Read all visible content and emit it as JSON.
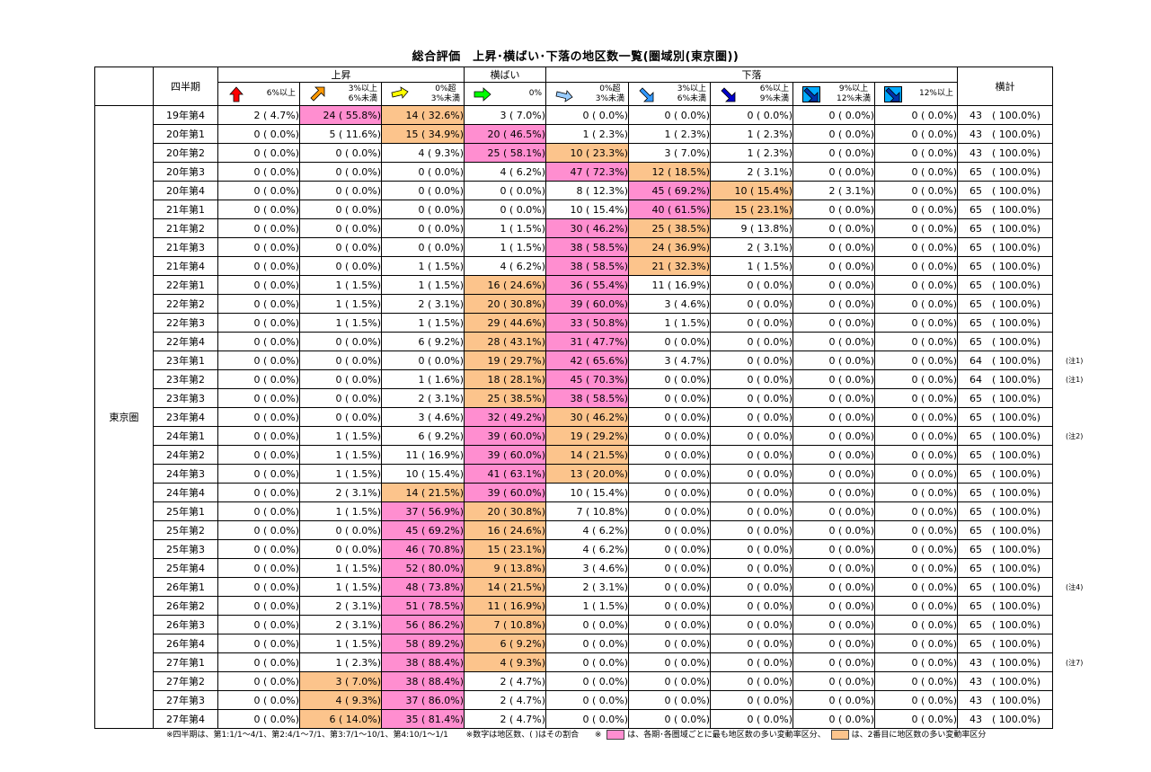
{
  "title": "総合評価　上昇･横ばい･下落の地区数一覧(圏域別(東京圏))",
  "header": {
    "quarter": "四半期",
    "up": "上昇",
    "flat": "横ばい",
    "down": "下落",
    "total": "横計",
    "cols": [
      {
        "label": "6%以上",
        "icon": "arrow-up-red-icon",
        "color": "#ff0000"
      },
      {
        "label": "3%以上\n6%未満",
        "icon": "arrow-up-right-orange-icon",
        "color": "#ff9900"
      },
      {
        "label": "0%超\n3%未満",
        "icon": "arrow-right-up-yellow-icon",
        "color": "#ffff00"
      },
      {
        "label": "0%",
        "icon": "arrow-right-green-icon",
        "color": "#00ff00"
      },
      {
        "label": "0%超\n3%未満",
        "icon": "arrow-right-down-lightblue-icon",
        "color": "#99ccff"
      },
      {
        "label": "3%以上\n6%未満",
        "icon": "arrow-down-right-blue-icon",
        "color": "#3399ff"
      },
      {
        "label": "6%以上\n9%未満",
        "icon": "arrow-down-right-darkblue-icon",
        "color": "#0000cc"
      },
      {
        "label": "9%以上\n12%未満",
        "icon": "arrow-down-right-boxed-icon",
        "color": "#0066ff"
      },
      {
        "label": "12%以上",
        "icon": "arrow-down-right-boxed-dark-icon",
        "color": "#0044cc"
      }
    ]
  },
  "region": "東京圏",
  "colors": {
    "most": "#ff8ed0",
    "second": "#fcc48c"
  },
  "rows": [
    {
      "q": "19年第4",
      "cells": [
        "2 ( 4.7%)",
        "24 ( 55.8%)",
        "14 ( 32.6%)",
        "3 ( 7.0%)",
        "0 ( 0.0%)",
        "0 ( 0.0%)",
        "0 ( 0.0%)",
        "0 ( 0.0%)",
        "0 ( 0.0%)"
      ],
      "hl": [
        null,
        "p",
        "o",
        null,
        null,
        null,
        null,
        null,
        null
      ],
      "total": "43　( 100.0%)",
      "note": ""
    },
    {
      "q": "20年第1",
      "cells": [
        "0 ( 0.0%)",
        "5 ( 11.6%)",
        "15 ( 34.9%)",
        "20 ( 46.5%)",
        "1 ( 2.3%)",
        "1 ( 2.3%)",
        "1 ( 2.3%)",
        "0 ( 0.0%)",
        "0 ( 0.0%)"
      ],
      "hl": [
        null,
        null,
        "o",
        "p",
        null,
        null,
        null,
        null,
        null
      ],
      "total": "43　( 100.0%)",
      "note": ""
    },
    {
      "q": "20年第2",
      "cells": [
        "0 ( 0.0%)",
        "0 ( 0.0%)",
        "4 ( 9.3%)",
        "25 ( 58.1%)",
        "10 ( 23.3%)",
        "3 ( 7.0%)",
        "1 ( 2.3%)",
        "0 ( 0.0%)",
        "0 ( 0.0%)"
      ],
      "hl": [
        null,
        null,
        null,
        "p",
        "o",
        null,
        null,
        null,
        null
      ],
      "total": "43　( 100.0%)",
      "note": ""
    },
    {
      "q": "20年第3",
      "cells": [
        "0 ( 0.0%)",
        "0 ( 0.0%)",
        "0 ( 0.0%)",
        "4 ( 6.2%)",
        "47 ( 72.3%)",
        "12 ( 18.5%)",
        "2 ( 3.1%)",
        "0 ( 0.0%)",
        "0 ( 0.0%)"
      ],
      "hl": [
        null,
        null,
        null,
        null,
        "p",
        "o",
        null,
        null,
        null
      ],
      "total": "65　( 100.0%)",
      "note": ""
    },
    {
      "q": "20年第4",
      "cells": [
        "0 ( 0.0%)",
        "0 ( 0.0%)",
        "0 ( 0.0%)",
        "0 ( 0.0%)",
        "8 ( 12.3%)",
        "45 ( 69.2%)",
        "10 ( 15.4%)",
        "2 ( 3.1%)",
        "0 ( 0.0%)"
      ],
      "hl": [
        null,
        null,
        null,
        null,
        null,
        "p",
        "o",
        null,
        null
      ],
      "total": "65　( 100.0%)",
      "note": ""
    },
    {
      "q": "21年第1",
      "cells": [
        "0 ( 0.0%)",
        "0 ( 0.0%)",
        "0 ( 0.0%)",
        "0 ( 0.0%)",
        "10 ( 15.4%)",
        "40 ( 61.5%)",
        "15 ( 23.1%)",
        "0 ( 0.0%)",
        "0 ( 0.0%)"
      ],
      "hl": [
        null,
        null,
        null,
        null,
        null,
        "p",
        "o",
        null,
        null
      ],
      "total": "65　( 100.0%)",
      "note": ""
    },
    {
      "q": "21年第2",
      "cells": [
        "0 ( 0.0%)",
        "0 ( 0.0%)",
        "0 ( 0.0%)",
        "1 ( 1.5%)",
        "30 ( 46.2%)",
        "25 ( 38.5%)",
        "9 ( 13.8%)",
        "0 ( 0.0%)",
        "0 ( 0.0%)"
      ],
      "hl": [
        null,
        null,
        null,
        null,
        "p",
        "o",
        null,
        null,
        null
      ],
      "total": "65　( 100.0%)",
      "note": ""
    },
    {
      "q": "21年第3",
      "cells": [
        "0 ( 0.0%)",
        "0 ( 0.0%)",
        "0 ( 0.0%)",
        "1 ( 1.5%)",
        "38 ( 58.5%)",
        "24 ( 36.9%)",
        "2 ( 3.1%)",
        "0 ( 0.0%)",
        "0 ( 0.0%)"
      ],
      "hl": [
        null,
        null,
        null,
        null,
        "p",
        "o",
        null,
        null,
        null
      ],
      "total": "65　( 100.0%)",
      "note": ""
    },
    {
      "q": "21年第4",
      "cells": [
        "0 ( 0.0%)",
        "0 ( 0.0%)",
        "1 ( 1.5%)",
        "4 ( 6.2%)",
        "38 ( 58.5%)",
        "21 ( 32.3%)",
        "1 ( 1.5%)",
        "0 ( 0.0%)",
        "0 ( 0.0%)"
      ],
      "hl": [
        null,
        null,
        null,
        null,
        "p",
        "o",
        null,
        null,
        null
      ],
      "total": "65　( 100.0%)",
      "note": ""
    },
    {
      "q": "22年第1",
      "cells": [
        "0 ( 0.0%)",
        "1 ( 1.5%)",
        "1 ( 1.5%)",
        "16 ( 24.6%)",
        "36 ( 55.4%)",
        "11 ( 16.9%)",
        "0 ( 0.0%)",
        "0 ( 0.0%)",
        "0 ( 0.0%)"
      ],
      "hl": [
        null,
        null,
        null,
        "o",
        "p",
        null,
        null,
        null,
        null
      ],
      "total": "65　( 100.0%)",
      "note": ""
    },
    {
      "q": "22年第2",
      "cells": [
        "0 ( 0.0%)",
        "1 ( 1.5%)",
        "2 ( 3.1%)",
        "20 ( 30.8%)",
        "39 ( 60.0%)",
        "3 ( 4.6%)",
        "0 ( 0.0%)",
        "0 ( 0.0%)",
        "0 ( 0.0%)"
      ],
      "hl": [
        null,
        null,
        null,
        "o",
        "p",
        null,
        null,
        null,
        null
      ],
      "total": "65　( 100.0%)",
      "note": ""
    },
    {
      "q": "22年第3",
      "cells": [
        "0 ( 0.0%)",
        "1 ( 1.5%)",
        "1 ( 1.5%)",
        "29 ( 44.6%)",
        "33 ( 50.8%)",
        "1 ( 1.5%)",
        "0 ( 0.0%)",
        "0 ( 0.0%)",
        "0 ( 0.0%)"
      ],
      "hl": [
        null,
        null,
        null,
        "o",
        "p",
        null,
        null,
        null,
        null
      ],
      "total": "65　( 100.0%)",
      "note": ""
    },
    {
      "q": "22年第4",
      "cells": [
        "0 ( 0.0%)",
        "0 ( 0.0%)",
        "6 ( 9.2%)",
        "28 ( 43.1%)",
        "31 ( 47.7%)",
        "0 ( 0.0%)",
        "0 ( 0.0%)",
        "0 ( 0.0%)",
        "0 ( 0.0%)"
      ],
      "hl": [
        null,
        null,
        null,
        "o",
        "p",
        null,
        null,
        null,
        null
      ],
      "total": "65　( 100.0%)",
      "note": ""
    },
    {
      "q": "23年第1",
      "cells": [
        "0 ( 0.0%)",
        "0 ( 0.0%)",
        "0 ( 0.0%)",
        "19 ( 29.7%)",
        "42 ( 65.6%)",
        "3 ( 4.7%)",
        "0 ( 0.0%)",
        "0 ( 0.0%)",
        "0 ( 0.0%)"
      ],
      "hl": [
        null,
        null,
        null,
        "o",
        "p",
        null,
        null,
        null,
        null
      ],
      "total": "64　( 100.0%)",
      "note": "(注1)"
    },
    {
      "q": "23年第2",
      "cells": [
        "0 ( 0.0%)",
        "0 ( 0.0%)",
        "1 ( 1.6%)",
        "18 ( 28.1%)",
        "45 ( 70.3%)",
        "0 ( 0.0%)",
        "0 ( 0.0%)",
        "0 ( 0.0%)",
        "0 ( 0.0%)"
      ],
      "hl": [
        null,
        null,
        null,
        "o",
        "p",
        null,
        null,
        null,
        null
      ],
      "total": "64　( 100.0%)",
      "note": "(注1)"
    },
    {
      "q": "23年第3",
      "cells": [
        "0 ( 0.0%)",
        "0 ( 0.0%)",
        "2 ( 3.1%)",
        "25 ( 38.5%)",
        "38 ( 58.5%)",
        "0 ( 0.0%)",
        "0 ( 0.0%)",
        "0 ( 0.0%)",
        "0 ( 0.0%)"
      ],
      "hl": [
        null,
        null,
        null,
        "o",
        "p",
        null,
        null,
        null,
        null
      ],
      "total": "65　( 100.0%)",
      "note": ""
    },
    {
      "q": "23年第4",
      "cells": [
        "0 ( 0.0%)",
        "0 ( 0.0%)",
        "3 ( 4.6%)",
        "32 ( 49.2%)",
        "30 ( 46.2%)",
        "0 ( 0.0%)",
        "0 ( 0.0%)",
        "0 ( 0.0%)",
        "0 ( 0.0%)"
      ],
      "hl": [
        null,
        null,
        null,
        "p",
        "o",
        null,
        null,
        null,
        null
      ],
      "total": "65　( 100.0%)",
      "note": ""
    },
    {
      "q": "24年第1",
      "cells": [
        "0 ( 0.0%)",
        "1 ( 1.5%)",
        "6 ( 9.2%)",
        "39 ( 60.0%)",
        "19 ( 29.2%)",
        "0 ( 0.0%)",
        "0 ( 0.0%)",
        "0 ( 0.0%)",
        "0 ( 0.0%)"
      ],
      "hl": [
        null,
        null,
        null,
        "p",
        "o",
        null,
        null,
        null,
        null
      ],
      "total": "65　( 100.0%)",
      "note": "(注2)"
    },
    {
      "q": "24年第2",
      "cells": [
        "0 ( 0.0%)",
        "1 ( 1.5%)",
        "11 ( 16.9%)",
        "39 ( 60.0%)",
        "14 ( 21.5%)",
        "0 ( 0.0%)",
        "0 ( 0.0%)",
        "0 ( 0.0%)",
        "0 ( 0.0%)"
      ],
      "hl": [
        null,
        null,
        null,
        "p",
        "o",
        null,
        null,
        null,
        null
      ],
      "total": "65　( 100.0%)",
      "note": ""
    },
    {
      "q": "24年第3",
      "cells": [
        "0 ( 0.0%)",
        "1 ( 1.5%)",
        "10 ( 15.4%)",
        "41 ( 63.1%)",
        "13 ( 20.0%)",
        "0 ( 0.0%)",
        "0 ( 0.0%)",
        "0 ( 0.0%)",
        "0 ( 0.0%)"
      ],
      "hl": [
        null,
        null,
        null,
        "p",
        "o",
        null,
        null,
        null,
        null
      ],
      "total": "65　( 100.0%)",
      "note": ""
    },
    {
      "q": "24年第4",
      "cells": [
        "0 ( 0.0%)",
        "2 ( 3.1%)",
        "14 ( 21.5%)",
        "39 ( 60.0%)",
        "10 ( 15.4%)",
        "0 ( 0.0%)",
        "0 ( 0.0%)",
        "0 ( 0.0%)",
        "0 ( 0.0%)"
      ],
      "hl": [
        null,
        null,
        "o",
        "p",
        null,
        null,
        null,
        null,
        null
      ],
      "total": "65　( 100.0%)",
      "note": ""
    },
    {
      "q": "25年第1",
      "cells": [
        "0 ( 0.0%)",
        "1 ( 1.5%)",
        "37 ( 56.9%)",
        "20 ( 30.8%)",
        "7 ( 10.8%)",
        "0 ( 0.0%)",
        "0 ( 0.0%)",
        "0 ( 0.0%)",
        "0 ( 0.0%)"
      ],
      "hl": [
        null,
        null,
        "p",
        "o",
        null,
        null,
        null,
        null,
        null
      ],
      "total": "65　( 100.0%)",
      "note": ""
    },
    {
      "q": "25年第2",
      "cells": [
        "0 ( 0.0%)",
        "0 ( 0.0%)",
        "45 ( 69.2%)",
        "16 ( 24.6%)",
        "4 ( 6.2%)",
        "0 ( 0.0%)",
        "0 ( 0.0%)",
        "0 ( 0.0%)",
        "0 ( 0.0%)"
      ],
      "hl": [
        null,
        null,
        "p",
        "o",
        null,
        null,
        null,
        null,
        null
      ],
      "total": "65　( 100.0%)",
      "note": ""
    },
    {
      "q": "25年第3",
      "cells": [
        "0 ( 0.0%)",
        "0 ( 0.0%)",
        "46 ( 70.8%)",
        "15 ( 23.1%)",
        "4 ( 6.2%)",
        "0 ( 0.0%)",
        "0 ( 0.0%)",
        "0 ( 0.0%)",
        "0 ( 0.0%)"
      ],
      "hl": [
        null,
        null,
        "p",
        "o",
        null,
        null,
        null,
        null,
        null
      ],
      "total": "65　( 100.0%)",
      "note": ""
    },
    {
      "q": "25年第4",
      "cells": [
        "0 ( 0.0%)",
        "1 ( 1.5%)",
        "52 ( 80.0%)",
        "9 ( 13.8%)",
        "3 ( 4.6%)",
        "0 ( 0.0%)",
        "0 ( 0.0%)",
        "0 ( 0.0%)",
        "0 ( 0.0%)"
      ],
      "hl": [
        null,
        null,
        "p",
        "o",
        null,
        null,
        null,
        null,
        null
      ],
      "total": "65　( 100.0%)",
      "note": ""
    },
    {
      "q": "26年第1",
      "cells": [
        "0 ( 0.0%)",
        "1 ( 1.5%)",
        "48 ( 73.8%)",
        "14 ( 21.5%)",
        "2 ( 3.1%)",
        "0 ( 0.0%)",
        "0 ( 0.0%)",
        "0 ( 0.0%)",
        "0 ( 0.0%)"
      ],
      "hl": [
        null,
        null,
        "p",
        "o",
        null,
        null,
        null,
        null,
        null
      ],
      "total": "65　( 100.0%)",
      "note": "(注4)"
    },
    {
      "q": "26年第2",
      "cells": [
        "0 ( 0.0%)",
        "2 ( 3.1%)",
        "51 ( 78.5%)",
        "11 ( 16.9%)",
        "1 ( 1.5%)",
        "0 ( 0.0%)",
        "0 ( 0.0%)",
        "0 ( 0.0%)",
        "0 ( 0.0%)"
      ],
      "hl": [
        null,
        null,
        "p",
        "o",
        null,
        null,
        null,
        null,
        null
      ],
      "total": "65　( 100.0%)",
      "note": ""
    },
    {
      "q": "26年第3",
      "cells": [
        "0 ( 0.0%)",
        "2 ( 3.1%)",
        "56 ( 86.2%)",
        "7 ( 10.8%)",
        "0 ( 0.0%)",
        "0 ( 0.0%)",
        "0 ( 0.0%)",
        "0 ( 0.0%)",
        "0 ( 0.0%)"
      ],
      "hl": [
        null,
        null,
        "p",
        "o",
        null,
        null,
        null,
        null,
        null
      ],
      "total": "65　( 100.0%)",
      "note": ""
    },
    {
      "q": "26年第4",
      "cells": [
        "0 ( 0.0%)",
        "1 ( 1.5%)",
        "58 ( 89.2%)",
        "6 ( 9.2%)",
        "0 ( 0.0%)",
        "0 ( 0.0%)",
        "0 ( 0.0%)",
        "0 ( 0.0%)",
        "0 ( 0.0%)"
      ],
      "hl": [
        null,
        null,
        "p",
        "o",
        null,
        null,
        null,
        null,
        null
      ],
      "total": "65　( 100.0%)",
      "note": ""
    },
    {
      "q": "27年第1",
      "cells": [
        "0 ( 0.0%)",
        "1 ( 2.3%)",
        "38 ( 88.4%)",
        "4 ( 9.3%)",
        "0 ( 0.0%)",
        "0 ( 0.0%)",
        "0 ( 0.0%)",
        "0 ( 0.0%)",
        "0 ( 0.0%)"
      ],
      "hl": [
        null,
        null,
        "p",
        "o",
        null,
        null,
        null,
        null,
        null
      ],
      "total": "43　( 100.0%)",
      "note": "(注7)"
    },
    {
      "q": "27年第2",
      "cells": [
        "0 ( 0.0%)",
        "3 ( 7.0%)",
        "38 ( 88.4%)",
        "2 ( 4.7%)",
        "0 ( 0.0%)",
        "0 ( 0.0%)",
        "0 ( 0.0%)",
        "0 ( 0.0%)",
        "0 ( 0.0%)"
      ],
      "hl": [
        null,
        "o",
        "p",
        null,
        null,
        null,
        null,
        null,
        null
      ],
      "total": "43　( 100.0%)",
      "note": ""
    },
    {
      "q": "27年第3",
      "cells": [
        "0 ( 0.0%)",
        "4 ( 9.3%)",
        "37 ( 86.0%)",
        "2 ( 4.7%)",
        "0 ( 0.0%)",
        "0 ( 0.0%)",
        "0 ( 0.0%)",
        "0 ( 0.0%)",
        "0 ( 0.0%)"
      ],
      "hl": [
        null,
        "o",
        "p",
        null,
        null,
        null,
        null,
        null,
        null
      ],
      "total": "43　( 100.0%)",
      "note": ""
    },
    {
      "q": "27年第4",
      "cells": [
        "0 ( 0.0%)",
        "6 ( 14.0%)",
        "35 ( 81.4%)",
        "2 ( 4.7%)",
        "0 ( 0.0%)",
        "0 ( 0.0%)",
        "0 ( 0.0%)",
        "0 ( 0.0%)",
        "0 ( 0.0%)"
      ],
      "hl": [
        null,
        "o",
        "p",
        null,
        null,
        null,
        null,
        null,
        null
      ],
      "total": "43　( 100.0%)",
      "note": ""
    }
  ],
  "footer": {
    "period_note": "※四半期は、第1:1/1～4/1、第2:4/1～7/1、第3:7/1～10/1、第4:10/1～1/1",
    "number_note": "※数字は地区数、( )はその割合",
    "mark": "※",
    "most_note": "は、各期･各圏域ごとに最も地区数の多い変動率区分、",
    "second_note": "は、2番目に地区数の多い変動率区分"
  }
}
